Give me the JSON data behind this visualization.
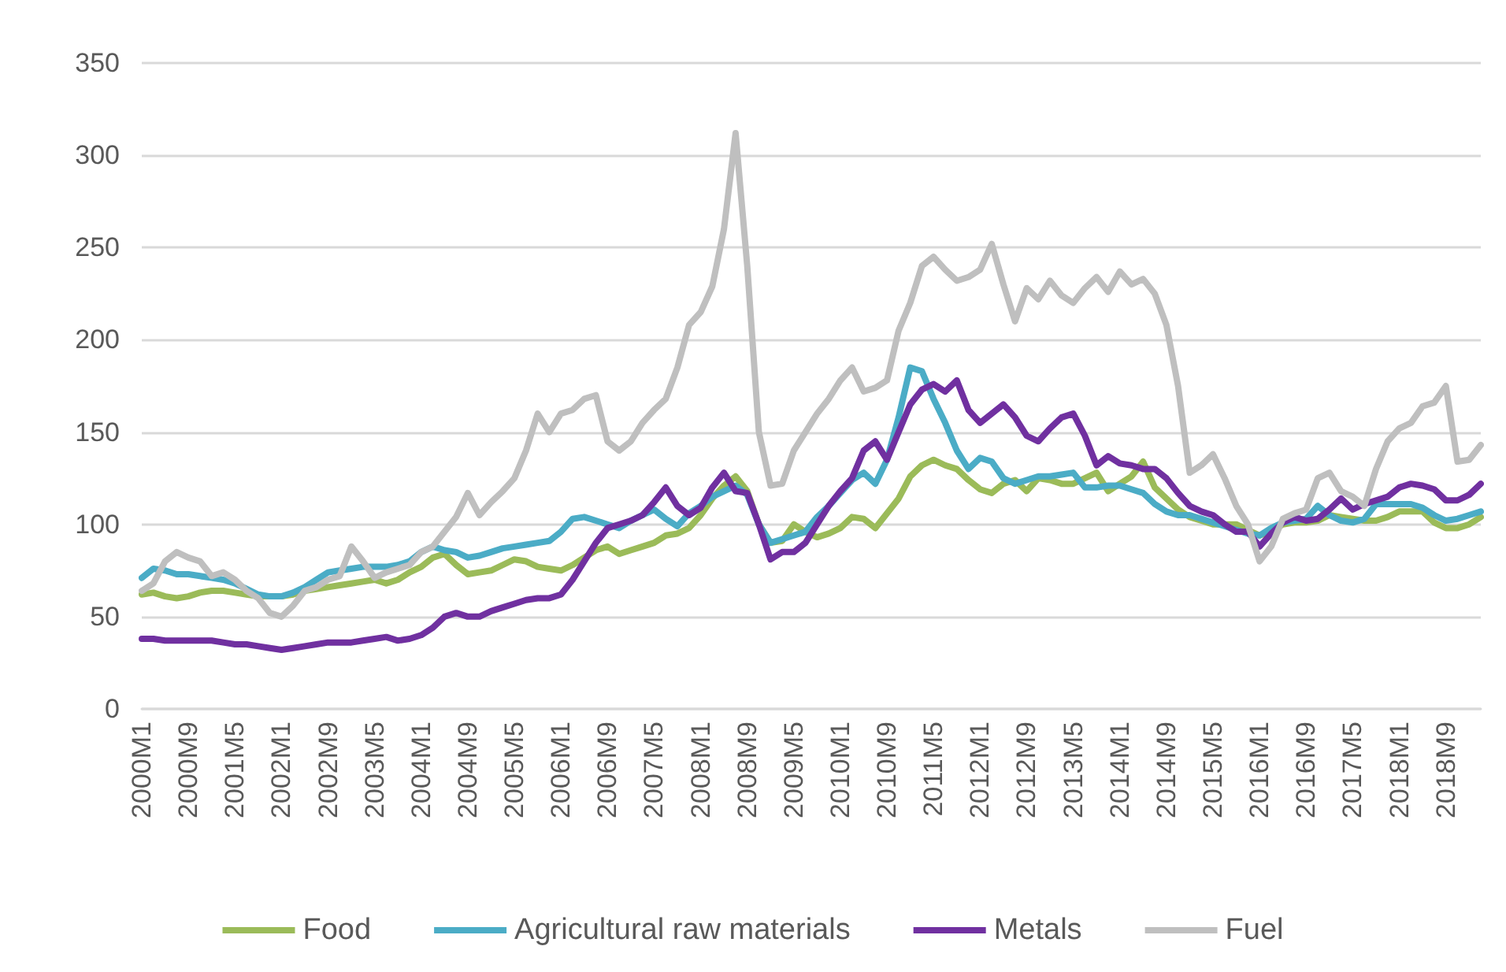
{
  "chart_data": {
    "type": "line",
    "categories": [
      "2000M1",
      null,
      null,
      null,
      "2000M9",
      null,
      null,
      null,
      "2001M5",
      null,
      null,
      null,
      "2002M1",
      null,
      null,
      null,
      "2002M9",
      null,
      null,
      null,
      "2003M5",
      null,
      null,
      null,
      "2004M1",
      null,
      null,
      null,
      "2004M9",
      null,
      null,
      null,
      "2005M5",
      null,
      null,
      null,
      "2006M1",
      null,
      null,
      null,
      "2006M9",
      null,
      null,
      null,
      "2007M5",
      null,
      null,
      null,
      "2008M1",
      null,
      null,
      null,
      "2008M9",
      null,
      null,
      null,
      "2009M5",
      null,
      null,
      null,
      "2010M1",
      null,
      null,
      null,
      "2010M9",
      null,
      null,
      null,
      "2011M5",
      null,
      null,
      null,
      "2012M1",
      null,
      null,
      null,
      "2012M9",
      null,
      null,
      null,
      "2013M5",
      null,
      null,
      null,
      "2014M1",
      null,
      null,
      null,
      "2014M9",
      null,
      null,
      null,
      "2015M5",
      null,
      null,
      null,
      "2016M1",
      null,
      null,
      null,
      "2016M9",
      null,
      null,
      null,
      "2017M5",
      null,
      null,
      null,
      "2018M1",
      null,
      null,
      null,
      "2018M9",
      null,
      null,
      null
    ],
    "series": [
      {
        "name": "Food",
        "color": "#9bbb59",
        "values": [
          62,
          63,
          61,
          60,
          61,
          63,
          64,
          64,
          63,
          62,
          61,
          61,
          61,
          62,
          64,
          65,
          66,
          67,
          68,
          69,
          70,
          68,
          70,
          74,
          77,
          82,
          84,
          78,
          73,
          74,
          75,
          78,
          81,
          80,
          77,
          76,
          75,
          78,
          82,
          86,
          88,
          84,
          86,
          88,
          90,
          94,
          95,
          98,
          105,
          114,
          121,
          126,
          118,
          100,
          90,
          91,
          100,
          96,
          93,
          95,
          98,
          104,
          103,
          98,
          106,
          114,
          126,
          132,
          135,
          132,
          130,
          124,
          119,
          117,
          122,
          124,
          118,
          125,
          124,
          122,
          122,
          125,
          128,
          118,
          122,
          126,
          134,
          120,
          114,
          108,
          104,
          102,
          100,
          100,
          100,
          97,
          94,
          96,
          100,
          101,
          101,
          102,
          105,
          104,
          103,
          102,
          102,
          104,
          107,
          107,
          107,
          101,
          98,
          98,
          100,
          104
        ]
      },
      {
        "name": "Agricultural raw materials",
        "color": "#4bacc6",
        "values": [
          71,
          76,
          75,
          73,
          73,
          72,
          71,
          70,
          68,
          65,
          62,
          61,
          61,
          63,
          66,
          70,
          74,
          75,
          76,
          77,
          77,
          77,
          78,
          80,
          85,
          88,
          86,
          85,
          82,
          83,
          85,
          87,
          88,
          89,
          90,
          91,
          96,
          103,
          104,
          102,
          100,
          98,
          102,
          105,
          108,
          103,
          99,
          106,
          110,
          115,
          118,
          121,
          116,
          100,
          90,
          92,
          94,
          96,
          104,
          110,
          117,
          124,
          128,
          122,
          135,
          158,
          185,
          183,
          168,
          155,
          140,
          130,
          136,
          134,
          125,
          122,
          124,
          126,
          126,
          127,
          128,
          120,
          120,
          121,
          121,
          119,
          117,
          111,
          107,
          105,
          105,
          103,
          101,
          99,
          97,
          95,
          94,
          98,
          101,
          102,
          103,
          110,
          105,
          102,
          101,
          103,
          111,
          111,
          111,
          111,
          109,
          105,
          102,
          103,
          105,
          107
        ]
      },
      {
        "name": "Metals",
        "color": "#7030a0",
        "values": [
          38,
          38,
          37,
          37,
          37,
          37,
          37,
          36,
          35,
          35,
          34,
          33,
          32,
          33,
          34,
          35,
          36,
          36,
          36,
          37,
          38,
          39,
          37,
          38,
          40,
          44,
          50,
          52,
          50,
          50,
          53,
          55,
          57,
          59,
          60,
          60,
          62,
          70,
          80,
          90,
          98,
          100,
          102,
          105,
          112,
          120,
          110,
          105,
          109,
          120,
          128,
          118,
          117,
          100,
          81,
          85,
          85,
          90,
          100,
          110,
          118,
          125,
          140,
          145,
          135,
          150,
          165,
          173,
          176,
          172,
          178,
          162,
          155,
          160,
          165,
          158,
          148,
          145,
          152,
          158,
          160,
          148,
          132,
          137,
          133,
          132,
          130,
          130,
          125,
          117,
          110,
          107,
          105,
          100,
          96,
          96,
          88,
          95,
          101,
          104,
          102,
          103,
          108,
          114,
          108,
          111,
          113,
          115,
          120,
          122,
          121,
          119,
          113,
          113,
          116,
          122
        ]
      },
      {
        "name": "Fuel",
        "color": "#bfbfbf",
        "values": [
          64,
          68,
          80,
          85,
          82,
          80,
          72,
          74,
          70,
          64,
          60,
          52,
          50,
          56,
          64,
          66,
          70,
          72,
          88,
          80,
          71,
          74,
          76,
          78,
          85,
          88,
          96,
          104,
          117,
          105,
          112,
          118,
          125,
          140,
          160,
          150,
          160,
          162,
          168,
          170,
          145,
          140,
          145,
          155,
          162,
          168,
          185,
          208,
          215,
          229,
          260,
          312,
          240,
          150,
          121,
          122,
          140,
          150,
          160,
          168,
          178,
          185,
          172,
          174,
          178,
          205,
          220,
          240,
          245,
          238,
          232,
          234,
          238,
          252,
          230,
          210,
          228,
          222,
          232,
          224,
          220,
          228,
          234,
          226,
          237,
          230,
          233,
          225,
          208,
          175,
          128,
          132,
          138,
          125,
          110,
          100,
          80,
          88,
          103,
          106,
          108,
          125,
          128,
          118,
          115,
          110,
          130,
          145,
          152,
          155,
          164,
          166,
          175,
          134,
          135,
          143
        ]
      }
    ],
    "ylim": [
      0,
      350
    ],
    "yticks": [
      0,
      50,
      100,
      150,
      200,
      250,
      300,
      350
    ],
    "grid": "y",
    "legend": "bottom",
    "marker": "none",
    "line_style": "solid"
  }
}
